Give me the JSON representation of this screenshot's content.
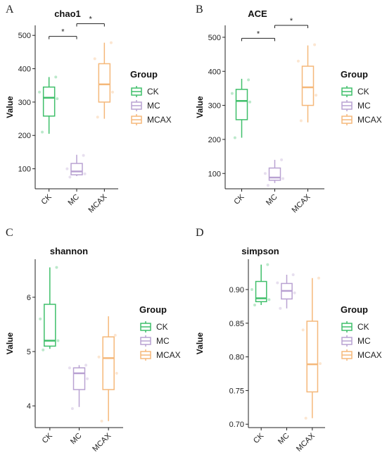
{
  "legend": {
    "title": "Group",
    "entries": [
      {
        "name": "CK",
        "color": "#3fbf6a"
      },
      {
        "name": "MC",
        "color": "#b9a2d2"
      },
      {
        "name": "MCAX",
        "color": "#f5b87a"
      }
    ]
  },
  "chart_data": [
    {
      "letter": "A",
      "type": "box",
      "title": "chao1",
      "ylabel": "Value",
      "xlabel": "",
      "categories": [
        "CK",
        "MC",
        "MCAX"
      ],
      "ylim": [
        40,
        530
      ],
      "yticks": [
        100,
        200,
        300,
        400,
        500
      ],
      "boxes": [
        {
          "group": "CK",
          "min": 205,
          "q1": 258,
          "median": 313,
          "q3": 345,
          "max": 375,
          "points": [
            210,
            310,
            330,
            375
          ]
        },
        {
          "group": "MC",
          "min": 78,
          "q1": 82,
          "median": 92,
          "q3": 116,
          "max": 142,
          "points": [
            75,
            85,
            100,
            140
          ]
        },
        {
          "group": "MCAX",
          "min": 250,
          "q1": 300,
          "median": 353,
          "q3": 415,
          "max": 478,
          "points": [
            255,
            330,
            430,
            478
          ]
        }
      ],
      "significance": [
        {
          "from": "CK",
          "to": "MC",
          "y": 497,
          "label": "*"
        },
        {
          "from": "MC",
          "to": "MCAX",
          "y": 535,
          "label": "*"
        }
      ]
    },
    {
      "letter": "B",
      "type": "box",
      "title": "ACE",
      "ylabel": "Value",
      "xlabel": "",
      "categories": [
        "CK",
        "MC",
        "MCAX"
      ],
      "ylim": [
        55,
        535
      ],
      "yticks": [
        100,
        200,
        300,
        400,
        500
      ],
      "boxes": [
        {
          "group": "CK",
          "min": 205,
          "q1": 258,
          "median": 313,
          "q3": 347,
          "max": 378,
          "points": [
            205,
            310,
            335,
            375
          ]
        },
        {
          "group": "MC",
          "min": 72,
          "q1": 80,
          "median": 88,
          "q3": 116,
          "max": 140,
          "points": [
            65,
            85,
            100,
            140
          ]
        },
        {
          "group": "MCAX",
          "min": 250,
          "q1": 300,
          "median": 353,
          "q3": 415,
          "max": 476,
          "points": [
            255,
            330,
            430,
            478
          ]
        }
      ],
      "significance": [
        {
          "from": "CK",
          "to": "MC",
          "y": 497,
          "label": "*"
        },
        {
          "from": "MC",
          "to": "MCAX",
          "y": 535,
          "label": "*"
        }
      ]
    },
    {
      "letter": "C",
      "type": "box",
      "title": "shannon",
      "ylabel": "Value",
      "xlabel": "",
      "categories": [
        "CK",
        "MC",
        "MCAX"
      ],
      "ylim": [
        3.6,
        6.7
      ],
      "yticks": [
        4,
        5,
        6
      ],
      "boxes": [
        {
          "group": "CK",
          "min": 5.05,
          "q1": 5.1,
          "median": 5.2,
          "q3": 5.87,
          "max": 6.55,
          "points": [
            5.03,
            5.2,
            5.6,
            6.55
          ]
        },
        {
          "group": "MC",
          "min": 3.98,
          "q1": 4.3,
          "median": 4.6,
          "q3": 4.7,
          "max": 4.75,
          "points": [
            3.95,
            4.5,
            4.7,
            4.75
          ]
        },
        {
          "group": "MCAX",
          "min": 3.72,
          "q1": 4.3,
          "median": 4.88,
          "q3": 5.27,
          "max": 5.65,
          "points": [
            3.72,
            4.6,
            4.9,
            5.3
          ]
        }
      ],
      "significance": []
    },
    {
      "letter": "D",
      "type": "box",
      "title": "simpson",
      "ylabel": "Value",
      "xlabel": "",
      "categories": [
        "CK",
        "MC",
        "MCAX"
      ],
      "ylim": [
        0.695,
        0.945
      ],
      "yticks": [
        0.7,
        0.75,
        0.8,
        0.85,
        0.9
      ],
      "tickDecimals": 2,
      "boxes": [
        {
          "group": "CK",
          "min": 0.877,
          "q1": 0.882,
          "median": 0.887,
          "q3": 0.912,
          "max": 0.937,
          "points": [
            0.877,
            0.885,
            0.9,
            0.937
          ]
        },
        {
          "group": "MC",
          "min": 0.872,
          "q1": 0.886,
          "median": 0.898,
          "q3": 0.909,
          "max": 0.922,
          "points": [
            0.872,
            0.895,
            0.91,
            0.922
          ]
        },
        {
          "group": "MCAX",
          "min": 0.709,
          "q1": 0.748,
          "median": 0.789,
          "q3": 0.853,
          "max": 0.917,
          "points": [
            0.709,
            0.79,
            0.84,
            0.917
          ]
        }
      ],
      "significance": []
    }
  ]
}
